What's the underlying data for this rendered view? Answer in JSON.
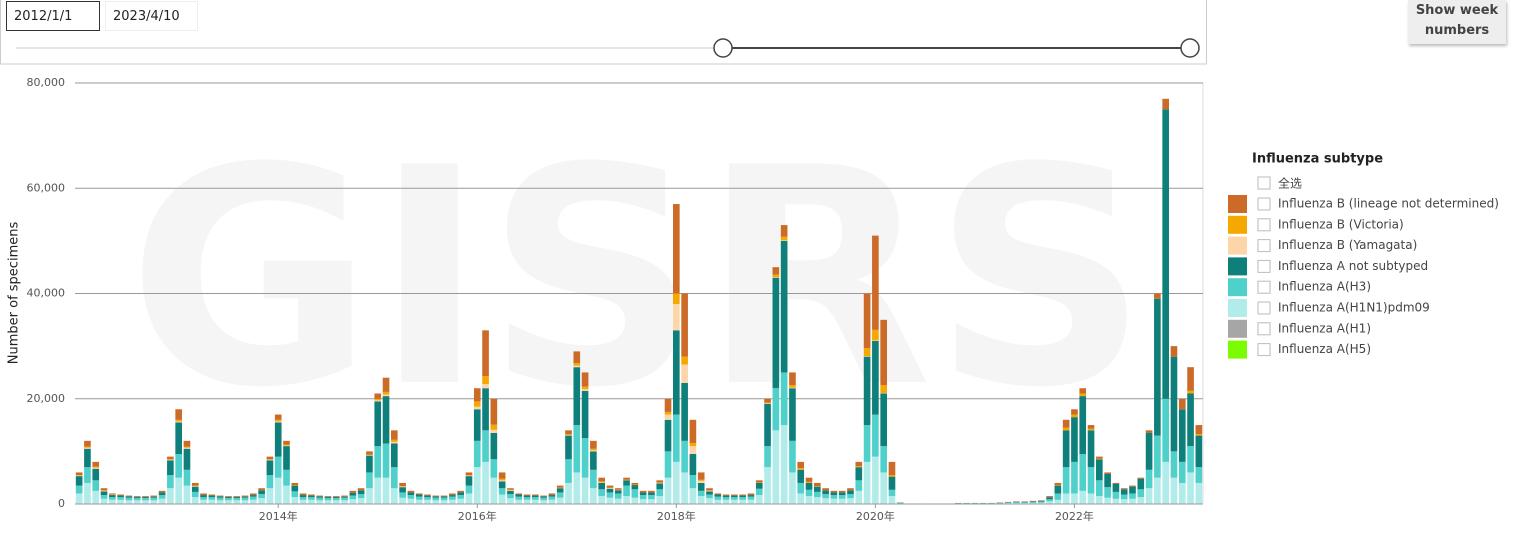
{
  "filters": {
    "start_date": "2012/1/1",
    "end_date": "2023/4/10"
  },
  "button": "Show week numbers",
  "chart_data": {
    "type": "stacked-bar",
    "watermark": "GISRS",
    "y_label": "Number of specimens",
    "legend_title": "Influenza subtype",
    "select_all": "全选",
    "ylim": [
      0,
      80000
    ],
    "yticks": [
      0,
      {
        "value": 20000,
        "label": "20,000"
      },
      {
        "value": 40000,
        "label": "40,000"
      },
      {
        "value": 60000,
        "label": "60,000"
      },
      {
        "value": 80000,
        "label": "80,000"
      }
    ],
    "grid": true,
    "legend": "right",
    "categories": [
      null,
      null,
      null,
      null,
      null,
      null,
      null,
      null,
      null,
      null,
      null,
      null,
      null,
      null,
      null,
      null,
      null,
      null,
      null,
      null,
      null,
      null,
      null,
      null,
      "2014年",
      null,
      null,
      null,
      null,
      null,
      null,
      null,
      null,
      null,
      null,
      null,
      null,
      null,
      null,
      null,
      null,
      null,
      null,
      null,
      null,
      null,
      null,
      null,
      "2016年",
      null,
      null,
      null,
      null,
      null,
      null,
      null,
      null,
      null,
      null,
      null,
      null,
      null,
      null,
      null,
      null,
      null,
      null,
      null,
      null,
      null,
      null,
      null,
      "2018年",
      null,
      null,
      null,
      null,
      null,
      null,
      null,
      null,
      null,
      null,
      null,
      null,
      null,
      null,
      null,
      null,
      null,
      null,
      null,
      null,
      null,
      null,
      null,
      "2020年",
      null,
      null,
      null,
      null,
      null,
      null,
      null,
      null,
      null,
      null,
      null,
      null,
      null,
      null,
      null,
      null,
      null,
      null,
      null,
      null,
      null,
      null,
      null,
      "2022年",
      null,
      null,
      null,
      null,
      null,
      null,
      null,
      null,
      null,
      null,
      null,
      null,
      null,
      null,
      null
    ],
    "series": [
      {
        "name": "Influenza B (lineage not determined)",
        "color": "#cc6a28",
        "values": [
          500,
          1100,
          900,
          400,
          200,
          200,
          150,
          150,
          150,
          200,
          300,
          500,
          2000,
          1100,
          500,
          300,
          200,
          150,
          150,
          150,
          200,
          300,
          400,
          500,
          1000,
          700,
          400,
          300,
          200,
          150,
          150,
          150,
          200,
          400,
          400,
          600,
          1000,
          2700,
          1800,
          600,
          300,
          200,
          200,
          150,
          150,
          300,
          300,
          500,
          2500,
          8700,
          4900,
          1200,
          300,
          200,
          200,
          200,
          150,
          300,
          400,
          700,
          2200,
          2700,
          1500,
          700,
          400,
          300,
          400,
          300,
          300,
          300,
          400,
          2500,
          17000,
          12000,
          4400,
          1400,
          400,
          200,
          200,
          200,
          200,
          300,
          400,
          700,
          1400,
          2200,
          2400,
          1200,
          800,
          600,
          400,
          300,
          300,
          400,
          800,
          10400,
          17900,
          12400,
          2500,
          50,
          10,
          10,
          10,
          10,
          10,
          10,
          20,
          20,
          20,
          20,
          20,
          50,
          50,
          70,
          70,
          80,
          80,
          200,
          400,
          1500,
          1000,
          1000,
          700,
          400,
          300,
          200,
          200,
          200,
          200,
          500,
          1000,
          2000,
          2000,
          2000,
          4500,
          1700
        ]
      },
      {
        "name": "Influenza B (Victoria)",
        "color": "#f5a800",
        "values": [
          100,
          200,
          200,
          100,
          50,
          0,
          0,
          0,
          0,
          0,
          0,
          100,
          300,
          200,
          100,
          0,
          0,
          0,
          0,
          0,
          0,
          0,
          0,
          100,
          300,
          200,
          100,
          0,
          0,
          0,
          0,
          0,
          0,
          0,
          0,
          100,
          300,
          500,
          400,
          100,
          0,
          0,
          0,
          0,
          0,
          0,
          0,
          100,
          1000,
          1500,
          1000,
          300,
          100,
          0,
          0,
          0,
          0,
          0,
          100,
          200,
          500,
          500,
          300,
          200,
          100,
          100,
          100,
          100,
          0,
          0,
          100,
          500,
          2000,
          1500,
          600,
          200,
          100,
          0,
          0,
          0,
          0,
          0,
          100,
          200,
          500,
          700,
          500,
          300,
          200,
          100,
          0,
          0,
          0,
          0,
          200,
          1500,
          2000,
          1500,
          300,
          0,
          0,
          0,
          0,
          0,
          0,
          0,
          0,
          0,
          0,
          0,
          0,
          0,
          0,
          0,
          0,
          0,
          0,
          0,
          100,
          500,
          500,
          500,
          300,
          100,
          0,
          0,
          0,
          0,
          0,
          0,
          0,
          0,
          0,
          0,
          500,
          300
        ]
      },
      {
        "name": "Influenza B (Yamagata)",
        "color": "#fcd6a8",
        "values": [
          100,
          200,
          200,
          100,
          50,
          0,
          0,
          0,
          0,
          0,
          0,
          100,
          200,
          200,
          100,
          0,
          0,
          0,
          0,
          0,
          0,
          0,
          0,
          100,
          200,
          100,
          0,
          0,
          0,
          0,
          0,
          0,
          0,
          0,
          0,
          100,
          200,
          300,
          300,
          100,
          0,
          0,
          0,
          0,
          0,
          0,
          0,
          100,
          500,
          800,
          600,
          200,
          100,
          0,
          0,
          0,
          0,
          0,
          0,
          100,
          300,
          300,
          200,
          100,
          100,
          0,
          0,
          0,
          0,
          0,
          100,
          1000,
          5000,
          3500,
          1500,
          400,
          100,
          0,
          0,
          0,
          0,
          0,
          0,
          100,
          100,
          100,
          100,
          0,
          0,
          0,
          0,
          0,
          0,
          0,
          0,
          100,
          100,
          100,
          0,
          0,
          0,
          0,
          0,
          0,
          0,
          0,
          0,
          0,
          0,
          0,
          0,
          0,
          0,
          0,
          0,
          0,
          0,
          0,
          0,
          0,
          0,
          0,
          0,
          0,
          0,
          0,
          0,
          0,
          0,
          0,
          0,
          0,
          0,
          0,
          0,
          0
        ]
      },
      {
        "name": "Influenza A not subtyped",
        "color": "#0e7f7a",
        "values": [
          1800,
          3500,
          2200,
          700,
          400,
          300,
          250,
          200,
          200,
          200,
          500,
          2800,
          6000,
          4000,
          1000,
          400,
          300,
          250,
          200,
          200,
          200,
          300,
          700,
          2800,
          6500,
          4500,
          1100,
          400,
          300,
          250,
          200,
          200,
          200,
          500,
          700,
          3200,
          8500,
          9000,
          4500,
          1000,
          500,
          400,
          300,
          250,
          250,
          300,
          500,
          1800,
          6000,
          8000,
          5000,
          1300,
          600,
          400,
          300,
          300,
          250,
          300,
          800,
          4500,
          11000,
          9000,
          3500,
          1200,
          700,
          600,
          1000,
          800,
          500,
          500,
          1100,
          6000,
          16000,
          11000,
          4000,
          1500,
          600,
          400,
          300,
          300,
          300,
          300,
          1100,
          8000,
          21000,
          25000,
          10000,
          2500,
          1300,
          1000,
          700,
          500,
          500,
          700,
          2500,
          13000,
          14000,
          10000,
          2500,
          50,
          20,
          20,
          20,
          20,
          20,
          20,
          40,
          40,
          40,
          40,
          40,
          50,
          80,
          100,
          100,
          120,
          150,
          400,
          1500,
          7000,
          8500,
          11000,
          7000,
          4000,
          2500,
          1500,
          1000,
          1300,
          2000,
          7000,
          26000,
          55000,
          18000,
          10000,
          10000,
          6000
        ]
      },
      {
        "name": "Influenza A(H3)",
        "color": "#4fd0cb",
        "values": [
          1500,
          3000,
          2000,
          700,
          500,
          500,
          500,
          450,
          450,
          500,
          700,
          2500,
          4500,
          3000,
          1000,
          500,
          500,
          500,
          450,
          450,
          500,
          600,
          800,
          2500,
          4000,
          3000,
          1100,
          500,
          500,
          500,
          450,
          450,
          500,
          700,
          800,
          3000,
          6000,
          6500,
          4000,
          1000,
          700,
          600,
          500,
          500,
          500,
          600,
          700,
          1500,
          5000,
          6000,
          3500,
          1200,
          800,
          600,
          500,
          500,
          500,
          600,
          1000,
          4500,
          9000,
          7500,
          3500,
          1300,
          1000,
          1000,
          2000,
          1600,
          800,
          800,
          1300,
          5000,
          9000,
          6000,
          2500,
          1000,
          700,
          600,
          500,
          500,
          500,
          600,
          1200,
          4000,
          8000,
          10000,
          6000,
          2000,
          1200,
          1000,
          800,
          700,
          700,
          800,
          2000,
          7000,
          8000,
          5000,
          1200,
          100,
          30,
          30,
          30,
          30,
          30,
          30,
          60,
          60,
          60,
          60,
          60,
          100,
          120,
          150,
          150,
          200,
          220,
          400,
          1200,
          5000,
          6000,
          7000,
          5000,
          3000,
          2000,
          1300,
          900,
          1000,
          1500,
          3500,
          8000,
          12000,
          5000,
          4000,
          5000,
          3000
        ]
      },
      {
        "name": "Influenza A(H1N1)pdm09",
        "color": "#b2ecea",
        "values": [
          2000,
          4000,
          2500,
          1000,
          800,
          800,
          700,
          700,
          700,
          700,
          1000,
          3000,
          5000,
          3500,
          1300,
          800,
          800,
          700,
          700,
          700,
          700,
          800,
          1100,
          3000,
          5000,
          3500,
          1300,
          800,
          800,
          700,
          700,
          700,
          700,
          900,
          1100,
          3000,
          5000,
          5000,
          3000,
          1200,
          1000,
          800,
          800,
          700,
          700,
          800,
          1000,
          2000,
          7000,
          8000,
          5000,
          1800,
          1100,
          800,
          800,
          800,
          700,
          800,
          1200,
          4000,
          6000,
          5000,
          3000,
          1500,
          1200,
          1000,
          1500,
          1200,
          900,
          900,
          1500,
          5000,
          8000,
          6000,
          3000,
          1500,
          1100,
          800,
          800,
          800,
          800,
          800,
          1700,
          7000,
          14000,
          15000,
          6000,
          2000,
          1500,
          1300,
          1100,
          1000,
          1000,
          1100,
          2500,
          8000,
          9000,
          6000,
          1500,
          100,
          40,
          40,
          40,
          40,
          40,
          40,
          80,
          80,
          80,
          80,
          80,
          100,
          150,
          180,
          180,
          200,
          250,
          500,
          800,
          2000,
          2000,
          2500,
          2000,
          1500,
          1200,
          1000,
          900,
          1000,
          1300,
          3000,
          5000,
          8000,
          5000,
          4000,
          6000,
          4000
        ]
      },
      {
        "name": "Influenza A(H1)",
        "color": "#a6a6a6",
        "values": [
          0,
          0,
          0,
          0,
          0,
          0,
          0,
          0,
          0,
          0,
          0,
          0,
          0,
          0,
          0,
          0,
          0,
          0,
          0,
          0,
          0,
          0,
          0,
          0,
          0,
          0,
          0,
          0,
          0,
          0,
          0,
          0,
          0,
          0,
          0,
          0,
          0,
          0,
          0,
          0,
          0,
          0,
          0,
          0,
          0,
          0,
          0,
          0,
          0,
          0,
          0,
          0,
          0,
          0,
          0,
          0,
          0,
          0,
          0,
          0,
          0,
          0,
          0,
          0,
          0,
          0,
          0,
          0,
          0,
          0,
          0,
          0,
          0,
          0,
          0,
          0,
          0,
          0,
          0,
          0,
          0,
          0,
          0,
          0,
          0,
          0,
          0,
          0,
          0,
          0,
          0,
          0,
          0,
          0,
          0,
          0,
          0,
          0,
          0,
          0,
          0,
          0,
          0,
          0,
          0,
          0,
          0,
          0,
          0,
          0,
          0,
          0,
          0,
          0,
          0,
          0,
          0,
          0,
          0,
          0,
          0,
          0,
          0,
          0,
          0,
          0,
          0,
          0,
          0,
          0,
          0,
          0,
          0,
          0,
          0,
          0
        ]
      },
      {
        "name": "Influenza A(H5)",
        "color": "#7cfc00",
        "values": [
          0,
          0,
          0,
          0,
          0,
          0,
          0,
          0,
          0,
          0,
          0,
          0,
          0,
          0,
          0,
          0,
          0,
          0,
          0,
          0,
          0,
          0,
          0,
          0,
          0,
          0,
          0,
          0,
          0,
          0,
          0,
          0,
          0,
          0,
          0,
          0,
          0,
          0,
          0,
          0,
          0,
          0,
          0,
          0,
          0,
          0,
          0,
          0,
          0,
          0,
          0,
          0,
          0,
          0,
          0,
          0,
          0,
          0,
          0,
          0,
          0,
          0,
          0,
          0,
          0,
          0,
          0,
          0,
          0,
          0,
          0,
          0,
          0,
          0,
          0,
          0,
          0,
          0,
          0,
          0,
          0,
          0,
          0,
          0,
          0,
          0,
          0,
          0,
          0,
          0,
          0,
          0,
          0,
          0,
          0,
          0,
          0,
          0,
          0,
          0,
          0,
          0,
          0,
          0,
          0,
          0,
          0,
          0,
          0,
          0,
          0,
          0,
          0,
          0,
          0,
          0,
          0,
          0,
          0,
          0,
          0,
          0,
          0,
          0,
          0,
          0,
          0,
          0,
          0,
          0,
          0,
          0,
          0,
          0,
          0,
          0
        ]
      }
    ]
  }
}
